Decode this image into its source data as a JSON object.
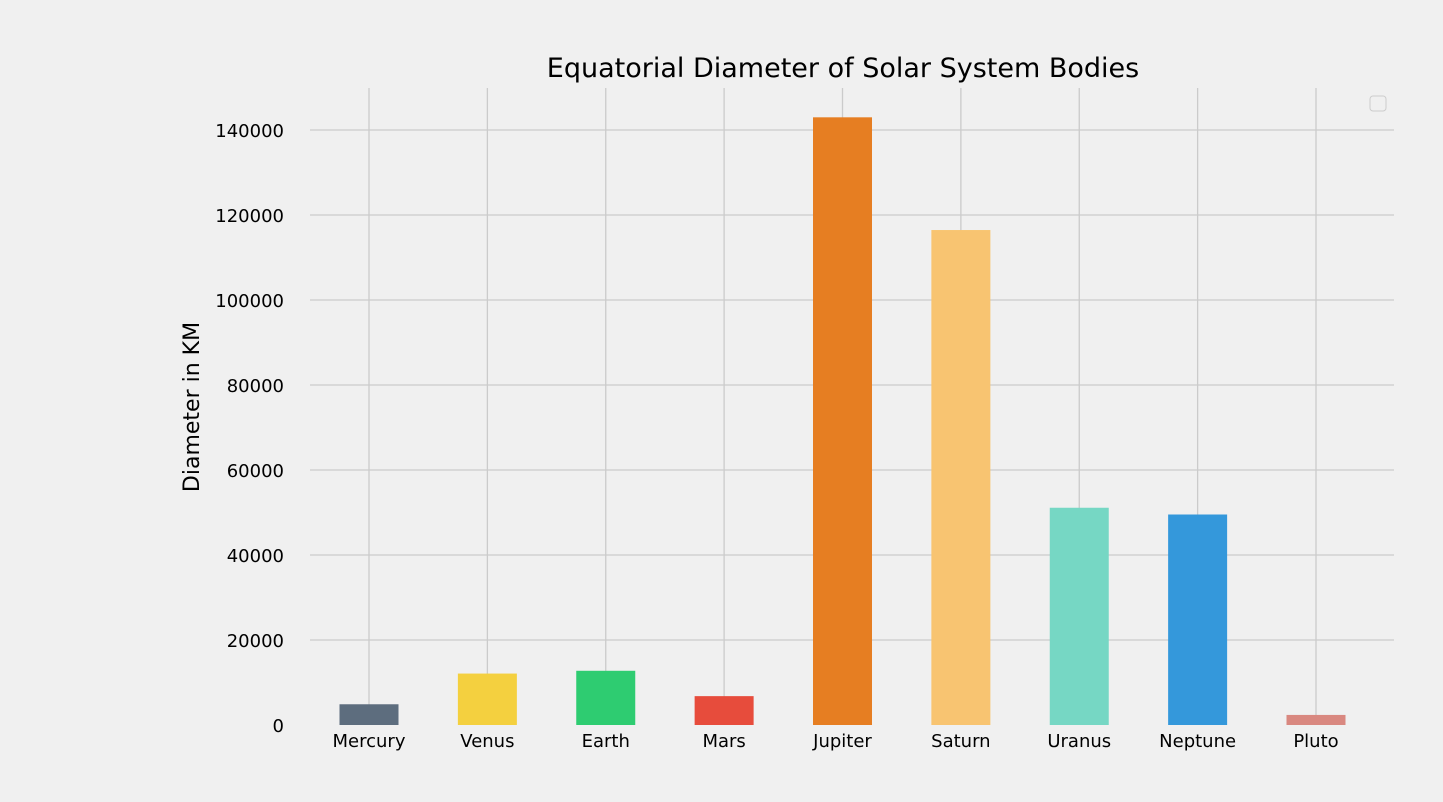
{
  "chart_data": {
    "type": "bar",
    "title": "Equatorial Diameter of Solar System Bodies",
    "xlabel": "",
    "ylabel": "Diameter in KM",
    "categories": [
      "Mercury",
      "Venus",
      "Earth",
      "Mars",
      "Jupiter",
      "Saturn",
      "Uranus",
      "Neptune",
      "Pluto"
    ],
    "values": [
      4879,
      12104,
      12756,
      6792,
      142984,
      116464,
      51118,
      49528,
      2370
    ],
    "colors": [
      "#5d6d7e",
      "#f4d03f",
      "#2ecc71",
      "#e74c3c",
      "#e67e22",
      "#f8c471",
      "#76d7c4",
      "#3498db",
      "#d98880"
    ],
    "ylim": [
      0,
      150000
    ],
    "yticks": [
      0,
      20000,
      40000,
      60000,
      80000,
      100000,
      120000,
      140000
    ],
    "grid": true,
    "legend": {
      "position": "top-right",
      "entries": []
    }
  }
}
